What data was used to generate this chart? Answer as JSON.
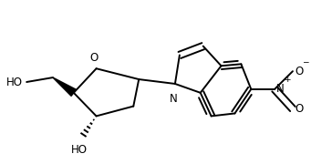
{
  "bg_color": "#ffffff",
  "bond_color": "#000000",
  "bond_lw": 1.4,
  "text_color": "#000000",
  "font_size": 8.5,
  "figsize": [
    3.64,
    1.8
  ],
  "dpi": 100,
  "xlim": [
    0,
    3.64
  ],
  "ylim": [
    0,
    1.8
  ]
}
